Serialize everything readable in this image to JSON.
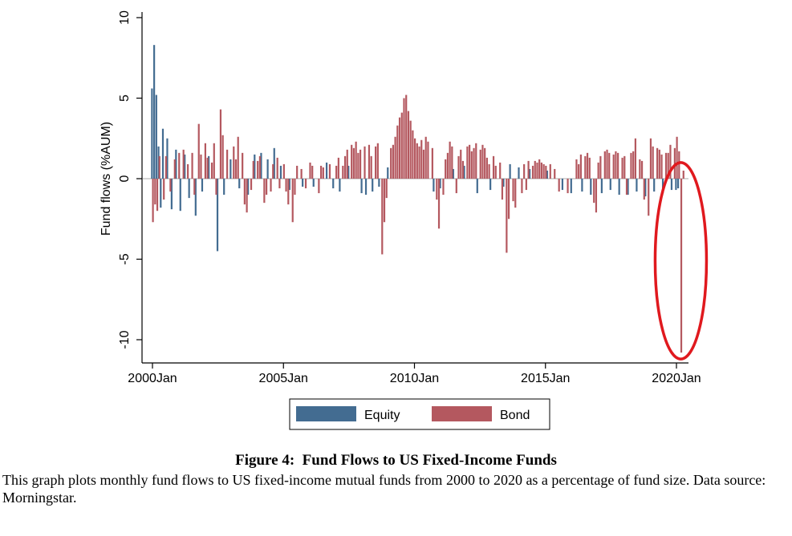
{
  "figure": {
    "caption_title": "Figure 4:  Fund Flows to US Fixed-Income Funds",
    "caption_text": "This graph plots monthly fund flows to US fixed-income mutual funds from 2000 to 2020 as a percentage of fund size. Data source: Morningstar."
  },
  "chart_data": {
    "type": "bar",
    "ylabel": "Fund flows (%AUM)",
    "xlabel": "",
    "ylim": [
      -11.5,
      10
    ],
    "yticks": [
      10,
      5,
      0,
      -5,
      -10
    ],
    "ytick_labels": [
      "10",
      "5",
      "0",
      "-5",
      "-10"
    ],
    "xlim": [
      2000.0,
      2020.6
    ],
    "xticks": [
      2000,
      2005,
      2010,
      2015,
      2020
    ],
    "xtick_labels": [
      "2000Jan",
      "2005Jan",
      "2010Jan",
      "2015Jan",
      "2020Jan"
    ],
    "grid": false,
    "legend": {
      "position": "bottom",
      "entries": [
        "Equity",
        "Bond"
      ]
    },
    "colors": {
      "Equity": "#436c91",
      "Bond": "#b4585f",
      "highlight": "#e0191e"
    },
    "annotation": {
      "type": "ellipse",
      "around": "March 2020 outflow",
      "color": "#e0191e"
    },
    "series": [
      {
        "name": "Equity",
        "points": [
          [
            "2000-01",
            5.6
          ],
          [
            "2000-02",
            8.3
          ],
          [
            "2000-03",
            5.2
          ],
          [
            "2000-04",
            2.0
          ],
          [
            "2000-05",
            -1.8
          ],
          [
            "2000-06",
            3.1
          ],
          [
            "2000-08",
            2.5
          ],
          [
            "2000-10",
            -1.9
          ],
          [
            "2000-12",
            1.8
          ],
          [
            "2001-02",
            -2.0
          ],
          [
            "2001-04",
            1.5
          ],
          [
            "2001-06",
            -1.2
          ],
          [
            "2001-09",
            -2.3
          ],
          [
            "2001-12",
            -0.8
          ],
          [
            "2002-03",
            1.4
          ],
          [
            "2002-07",
            -4.5
          ],
          [
            "2002-10",
            -1.0
          ],
          [
            "2003-01",
            1.2
          ],
          [
            "2003-05",
            -0.6
          ],
          [
            "2003-09",
            -1.0
          ],
          [
            "2003-12",
            1.5
          ],
          [
            "2004-03",
            1.6
          ],
          [
            "2004-06",
            1.2
          ],
          [
            "2004-09",
            1.9
          ],
          [
            "2004-12",
            0.8
          ],
          [
            "2005-04",
            -0.7
          ],
          [
            "2005-10",
            -0.5
          ],
          [
            "2006-03",
            -0.5
          ],
          [
            "2006-09",
            1.0
          ],
          [
            "2006-12",
            -0.6
          ],
          [
            "2007-03",
            -0.8
          ],
          [
            "2007-07",
            0.8
          ],
          [
            "2008-01",
            -0.9
          ],
          [
            "2008-03",
            -1.0
          ],
          [
            "2008-06",
            -0.8
          ],
          [
            "2008-09",
            -0.5
          ],
          [
            "2009-01",
            0.7
          ],
          [
            "2010-10",
            -0.8
          ],
          [
            "2011-01",
            -0.6
          ],
          [
            "2011-07",
            0.6
          ],
          [
            "2011-12",
            0.8
          ],
          [
            "2012-06",
            -0.9
          ],
          [
            "2012-12",
            -0.7
          ],
          [
            "2013-06",
            -0.5
          ],
          [
            "2013-09",
            0.9
          ],
          [
            "2014-01",
            0.7
          ],
          [
            "2014-06",
            0.6
          ],
          [
            "2015-02",
            0.5
          ],
          [
            "2015-09",
            -0.7
          ],
          [
            "2016-01",
            -0.9
          ],
          [
            "2016-06",
            -0.8
          ],
          [
            "2016-10",
            -1.0
          ],
          [
            "2017-03",
            -0.9
          ],
          [
            "2017-07",
            -0.7
          ],
          [
            "2017-11",
            -1.0
          ],
          [
            "2018-03",
            -1.0
          ],
          [
            "2018-07",
            -0.8
          ],
          [
            "2018-11",
            -1.1
          ],
          [
            "2019-03",
            -0.8
          ],
          [
            "2019-07",
            -0.9
          ],
          [
            "2019-11",
            -0.7
          ],
          [
            "2020-01",
            -0.7
          ],
          [
            "2020-02",
            -0.6
          ]
        ]
      },
      {
        "name": "Bond",
        "points": [
          [
            "2000-01",
            -2.7
          ],
          [
            "2000-02",
            -1.6
          ],
          [
            "2000-03",
            -2.0
          ],
          [
            "2000-04",
            1.4
          ],
          [
            "2000-06",
            -1.3
          ],
          [
            "2000-07",
            1.4
          ],
          [
            "2000-09",
            -0.8
          ],
          [
            "2000-11",
            1.2
          ],
          [
            "2001-01",
            1.6
          ],
          [
            "2001-03",
            1.8
          ],
          [
            "2001-05",
            0.9
          ],
          [
            "2001-07",
            1.6
          ],
          [
            "2001-08",
            -1.0
          ],
          [
            "2001-10",
            3.4
          ],
          [
            "2001-11",
            1.5
          ],
          [
            "2002-01",
            2.2
          ],
          [
            "2002-02",
            1.3
          ],
          [
            "2002-04",
            1.0
          ],
          [
            "2002-05",
            2.2
          ],
          [
            "2002-06",
            -1.0
          ],
          [
            "2002-08",
            4.3
          ],
          [
            "2002-09",
            2.7
          ],
          [
            "2002-11",
            1.8
          ],
          [
            "2003-02",
            2.0
          ],
          [
            "2003-03",
            1.2
          ],
          [
            "2003-04",
            2.6
          ],
          [
            "2003-06",
            1.6
          ],
          [
            "2003-07",
            -1.6
          ],
          [
            "2003-08",
            -2.1
          ],
          [
            "2003-10",
            -0.7
          ],
          [
            "2003-11",
            1.1
          ],
          [
            "2004-01",
            1.1
          ],
          [
            "2004-02",
            1.4
          ],
          [
            "2004-04",
            -1.5
          ],
          [
            "2004-05",
            -1.0
          ],
          [
            "2004-07",
            -0.8
          ],
          [
            "2004-08",
            0.9
          ],
          [
            "2004-10",
            1.3
          ],
          [
            "2004-11",
            -0.6
          ],
          [
            "2005-01",
            0.9
          ],
          [
            "2005-02",
            -0.8
          ],
          [
            "2005-03",
            -1.6
          ],
          [
            "2005-05",
            -2.7
          ],
          [
            "2005-06",
            -1.0
          ],
          [
            "2005-07",
            0.8
          ],
          [
            "2005-09",
            0.6
          ],
          [
            "2005-11",
            -0.6
          ],
          [
            "2006-01",
            1.0
          ],
          [
            "2006-02",
            0.8
          ],
          [
            "2006-05",
            -0.9
          ],
          [
            "2006-06",
            0.8
          ],
          [
            "2006-07",
            0.7
          ],
          [
            "2006-10",
            0.9
          ],
          [
            "2007-01",
            0.8
          ],
          [
            "2007-02",
            1.3
          ],
          [
            "2007-04",
            0.8
          ],
          [
            "2007-05",
            1.4
          ],
          [
            "2007-06",
            1.8
          ],
          [
            "2007-08",
            2.1
          ],
          [
            "2007-09",
            1.9
          ],
          [
            "2007-10",
            2.3
          ],
          [
            "2007-11",
            1.6
          ],
          [
            "2007-12",
            1.8
          ],
          [
            "2008-02",
            2.0
          ],
          [
            "2008-04",
            2.1
          ],
          [
            "2008-05",
            1.4
          ],
          [
            "2008-07",
            2.0
          ],
          [
            "2008-08",
            2.2
          ],
          [
            "2008-10",
            -4.7
          ],
          [
            "2008-11",
            -2.7
          ],
          [
            "2008-12",
            -1.2
          ],
          [
            "2009-02",
            1.9
          ],
          [
            "2009-03",
            2.1
          ],
          [
            "2009-04",
            2.6
          ],
          [
            "2009-05",
            3.3
          ],
          [
            "2009-06",
            3.8
          ],
          [
            "2009-07",
            4.1
          ],
          [
            "2009-08",
            5.0
          ],
          [
            "2009-09",
            5.2
          ],
          [
            "2009-10",
            4.2
          ],
          [
            "2009-11",
            3.6
          ],
          [
            "2009-12",
            3.0
          ],
          [
            "2010-01",
            2.5
          ],
          [
            "2010-02",
            2.2
          ],
          [
            "2010-03",
            2.0
          ],
          [
            "2010-04",
            2.4
          ],
          [
            "2010-05",
            1.8
          ],
          [
            "2010-06",
            2.6
          ],
          [
            "2010-07",
            2.3
          ],
          [
            "2010-09",
            1.9
          ],
          [
            "2010-11",
            -1.3
          ],
          [
            "2010-12",
            -3.1
          ],
          [
            "2011-02",
            -1.0
          ],
          [
            "2011-03",
            1.2
          ],
          [
            "2011-04",
            1.6
          ],
          [
            "2011-05",
            2.3
          ],
          [
            "2011-06",
            2.0
          ],
          [
            "2011-08",
            -0.9
          ],
          [
            "2011-09",
            1.4
          ],
          [
            "2011-10",
            1.8
          ],
          [
            "2011-11",
            1.1
          ],
          [
            "2012-01",
            2.0
          ],
          [
            "2012-02",
            2.1
          ],
          [
            "2012-03",
            1.7
          ],
          [
            "2012-04",
            1.9
          ],
          [
            "2012-05",
            2.2
          ],
          [
            "2012-07",
            1.8
          ],
          [
            "2012-08",
            2.1
          ],
          [
            "2012-09",
            1.9
          ],
          [
            "2012-10",
            1.3
          ],
          [
            "2012-11",
            0.9
          ],
          [
            "2013-01",
            1.4
          ],
          [
            "2013-02",
            0.8
          ],
          [
            "2013-04",
            1.0
          ],
          [
            "2013-05",
            -1.3
          ],
          [
            "2013-07",
            -4.6
          ],
          [
            "2013-08",
            -2.5
          ],
          [
            "2013-10",
            -1.4
          ],
          [
            "2013-11",
            -1.8
          ],
          [
            "2014-02",
            -0.9
          ],
          [
            "2014-03",
            0.9
          ],
          [
            "2014-04",
            -0.7
          ],
          [
            "2014-05",
            1.1
          ],
          [
            "2014-07",
            0.8
          ],
          [
            "2014-08",
            1.1
          ],
          [
            "2014-09",
            1.0
          ],
          [
            "2014-10",
            1.2
          ],
          [
            "2014-11",
            1.0
          ],
          [
            "2014-12",
            0.9
          ],
          [
            "2015-01",
            0.8
          ],
          [
            "2015-03",
            0.9
          ],
          [
            "2015-05",
            0.6
          ],
          [
            "2015-07",
            -0.8
          ],
          [
            "2015-11",
            -0.9
          ],
          [
            "2016-03",
            1.2
          ],
          [
            "2016-04",
            0.9
          ],
          [
            "2016-05",
            1.5
          ],
          [
            "2016-07",
            1.4
          ],
          [
            "2016-08",
            1.6
          ],
          [
            "2016-09",
            1.3
          ],
          [
            "2016-11",
            -1.5
          ],
          [
            "2016-12",
            -2.1
          ],
          [
            "2017-01",
            1.0
          ],
          [
            "2017-02",
            1.4
          ],
          [
            "2017-04",
            1.7
          ],
          [
            "2017-05",
            1.8
          ],
          [
            "2017-06",
            1.6
          ],
          [
            "2017-08",
            1.5
          ],
          [
            "2017-09",
            1.7
          ],
          [
            "2017-10",
            1.6
          ],
          [
            "2017-12",
            1.3
          ],
          [
            "2018-01",
            1.4
          ],
          [
            "2018-02",
            -1.0
          ],
          [
            "2018-04",
            1.6
          ],
          [
            "2018-05",
            1.7
          ],
          [
            "2018-06",
            2.5
          ],
          [
            "2018-08",
            1.2
          ],
          [
            "2018-09",
            1.1
          ],
          [
            "2018-10",
            -1.3
          ],
          [
            "2018-12",
            -2.3
          ],
          [
            "2019-01",
            2.5
          ],
          [
            "2019-02",
            2.0
          ],
          [
            "2019-04",
            1.9
          ],
          [
            "2019-05",
            1.8
          ],
          [
            "2019-06",
            1.5
          ],
          [
            "2019-08",
            1.6
          ],
          [
            "2019-09",
            1.6
          ],
          [
            "2019-10",
            2.1
          ],
          [
            "2019-12",
            1.9
          ],
          [
            "2020-01",
            2.6
          ],
          [
            "2020-02",
            1.7
          ],
          [
            "2020-03",
            -10.8
          ],
          [
            "2020-04",
            0.5
          ]
        ]
      }
    ]
  }
}
